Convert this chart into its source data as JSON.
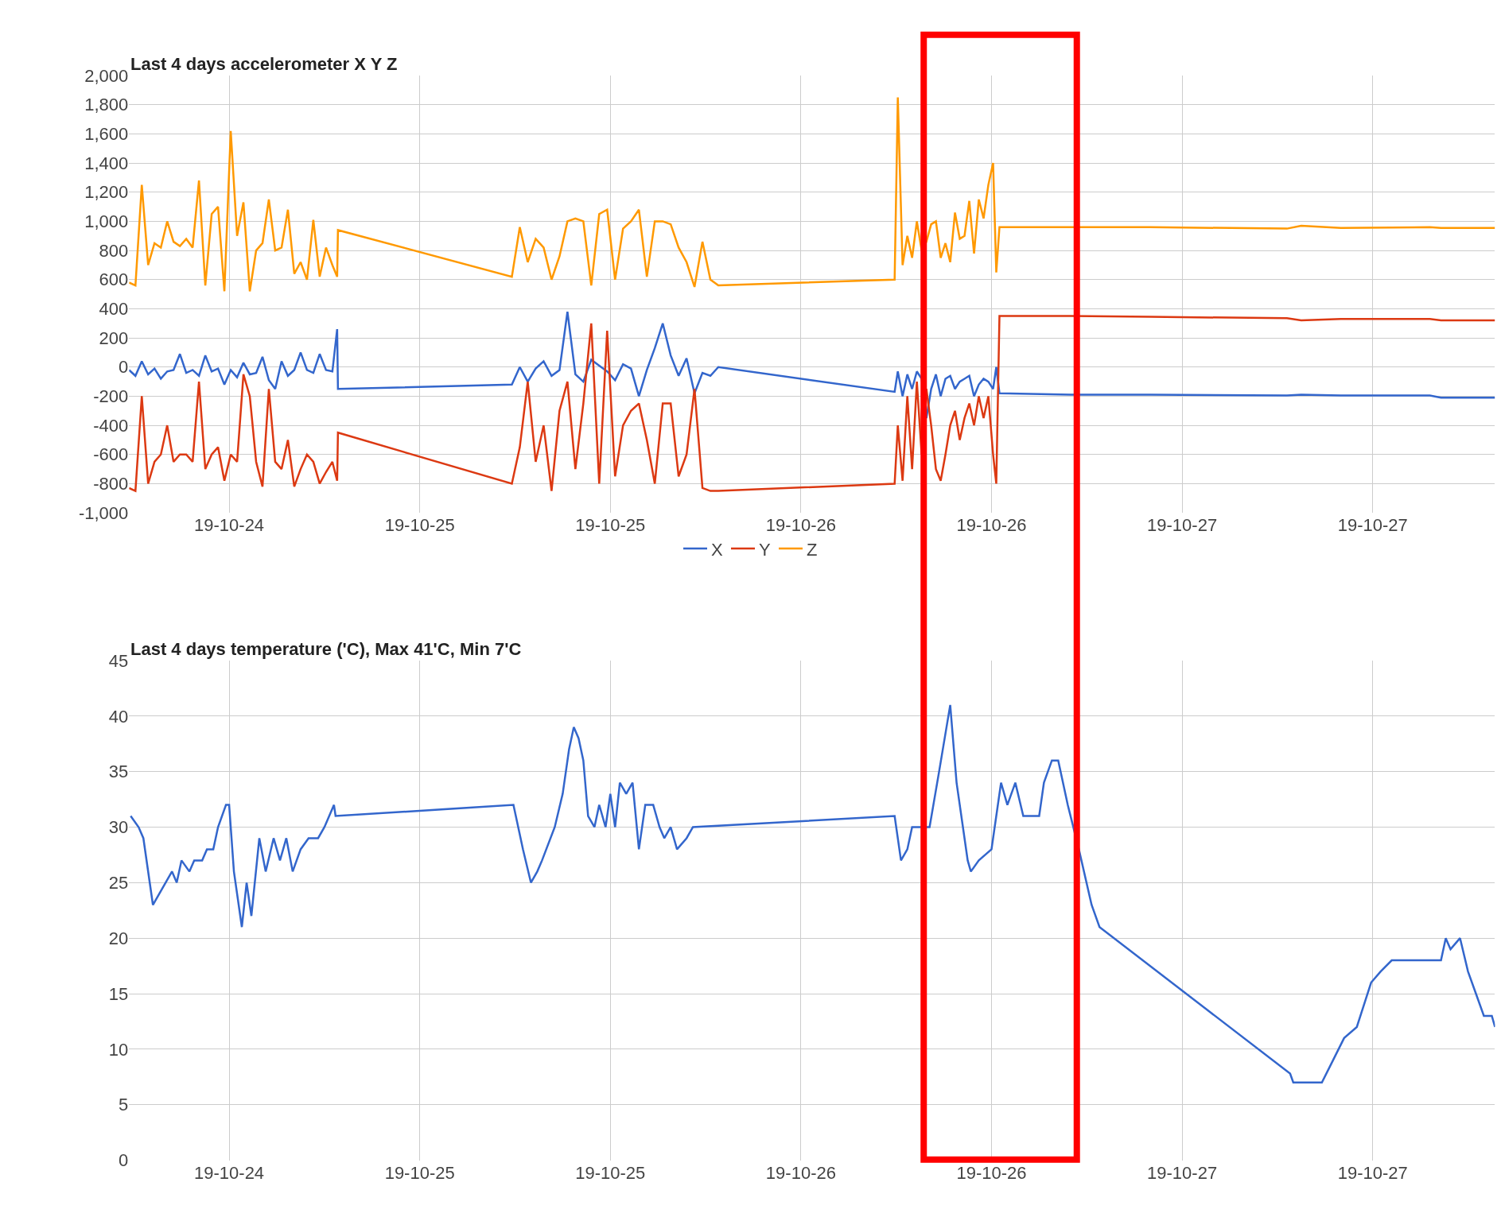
{
  "chart_data": [
    {
      "type": "line",
      "title": "Last 4 days accelerometer X Y Z",
      "legend": "bottom",
      "grid": true,
      "xlim": [
        "--10-24T05:42",
        "--10-27T19:42"
      ],
      "xticks": [
        {
          "value": "--10-24T12:00",
          "label": "19-10-24"
        },
        {
          "value": "--10-25T00:00",
          "label": "19-10-25"
        },
        {
          "value": "--10-25T12:00",
          "label": "19-10-25"
        },
        {
          "value": "--10-26T00:00",
          "label": "19-10-26"
        },
        {
          "value": "--10-26T12:00",
          "label": "19-10-26"
        },
        {
          "value": "--10-27T00:00",
          "label": "19-10-27"
        },
        {
          "value": "--10-27T12:00",
          "label": "19-10-27"
        }
      ],
      "ylim": [
        -1000,
        2000
      ],
      "yticks": [
        {
          "value": -1000,
          "label": "-1,000"
        },
        -800,
        -600,
        -400,
        -200,
        0,
        200,
        400,
        600,
        800,
        {
          "value": 1000,
          "label": "1,000"
        },
        {
          "value": 1200,
          "label": "1,200"
        },
        {
          "value": 1400,
          "label": "1,400"
        },
        {
          "value": 1600,
          "label": "1,600"
        },
        {
          "value": 1800,
          "label": "1,800"
        },
        {
          "value": 2000,
          "label": "2,000"
        }
      ],
      "x": [
        "--10-24T05:42",
        "--10-24T06:06",
        "--10-24T06:30",
        "--10-24T06:54",
        "--10-24T07:18",
        "--10-24T07:42",
        "--10-24T08:06",
        "--10-24T08:30",
        "--10-24T08:54",
        "--10-24T09:18",
        "--10-24T09:42",
        "--10-24T10:06",
        "--10-24T10:30",
        "--10-24T10:54",
        "--10-24T11:18",
        "--10-24T11:42",
        "--10-24T12:06",
        "--10-24T12:30",
        "--10-24T12:54",
        "--10-24T13:18",
        "--10-24T13:42",
        "--10-24T14:06",
        "--10-24T14:30",
        "--10-24T14:54",
        "--10-24T15:18",
        "--10-24T15:42",
        "--10-24T16:06",
        "--10-24T16:30",
        "--10-24T16:54",
        "--10-24T17:18",
        "--10-24T17:42",
        "--10-24T18:06",
        "--10-24T18:30",
        "--10-24T18:48",
        "--10-24T18:51",
        "--10-25T05:48",
        "--10-25T06:18",
        "--10-25T06:48",
        "--10-25T07:18",
        "--10-25T07:48",
        "--10-25T08:18",
        "--10-25T08:48",
        "--10-25T09:18",
        "--10-25T09:48",
        "--10-25T10:18",
        "--10-25T10:48",
        "--10-25T11:18",
        "--10-25T11:48",
        "--10-25T12:18",
        "--10-25T12:48",
        "--10-25T13:18",
        "--10-25T13:48",
        "--10-25T14:18",
        "--10-25T14:48",
        "--10-25T15:18",
        "--10-25T15:48",
        "--10-25T16:18",
        "--10-25T16:48",
        "--10-25T17:18",
        "--10-25T17:48",
        "--10-25T18:18",
        "--10-25T18:48",
        "--10-26T05:54",
        "--10-26T06:06",
        "--10-26T06:24",
        "--10-26T06:42",
        "--10-26T07:00",
        "--10-26T07:18",
        "--10-26T07:36",
        "--10-26T07:54",
        "--10-26T08:12",
        "--10-26T08:30",
        "--10-26T08:48",
        "--10-26T09:06",
        "--10-26T09:24",
        "--10-26T09:42",
        "--10-26T10:00",
        "--10-26T10:18",
        "--10-26T10:36",
        "--10-26T10:54",
        "--10-26T11:12",
        "--10-26T11:30",
        "--10-26T11:48",
        "--10-26T12:06",
        "--10-26T12:18",
        "--10-26T12:30",
        "--10-26T17:00",
        "--10-26T22:00",
        "--10-27T06:36",
        "--10-27T07:30",
        "--10-27T10:00",
        "--10-27T15:36",
        "--10-27T16:18",
        "--10-27T19:42"
      ],
      "series": [
        {
          "name": "X",
          "color": "#3366cc",
          "values": [
            -20,
            -60,
            40,
            -50,
            -10,
            -80,
            -30,
            -20,
            90,
            -40,
            -20,
            -60,
            80,
            -30,
            -10,
            -120,
            -20,
            -70,
            30,
            -50,
            -40,
            70,
            -90,
            -150,
            40,
            -60,
            -20,
            100,
            -20,
            -40,
            90,
            -20,
            -30,
            260,
            -150,
            -120,
            0,
            -100,
            -10,
            40,
            -60,
            -20,
            380,
            -50,
            -100,
            50,
            10,
            -30,
            -90,
            20,
            -10,
            -200,
            -20,
            130,
            300,
            80,
            -60,
            60,
            -180,
            -40,
            -60,
            0,
            -170,
            -30,
            -200,
            -50,
            -150,
            -30,
            -80,
            -350,
            -150,
            -50,
            -200,
            -80,
            -60,
            -150,
            -100,
            -80,
            -60,
            -200,
            -120,
            -80,
            -100,
            -150,
            0,
            -180,
            -190,
            -190,
            -195,
            -190,
            -195,
            -195,
            -210,
            -210
          ]
        },
        {
          "name": "Y",
          "color": "#dc3912",
          "values": [
            -830,
            -850,
            -200,
            -800,
            -650,
            -600,
            -400,
            -650,
            -600,
            -600,
            -650,
            -100,
            -700,
            -600,
            -550,
            -780,
            -600,
            -650,
            -50,
            -200,
            -650,
            -820,
            -150,
            -650,
            -700,
            -500,
            -820,
            -700,
            -600,
            -650,
            -800,
            -720,
            -650,
            -780,
            -450,
            -800,
            -550,
            -100,
            -650,
            -400,
            -850,
            -300,
            -100,
            -700,
            -250,
            300,
            -800,
            250,
            -750,
            -400,
            -300,
            -250,
            -500,
            -800,
            -250,
            -250,
            -750,
            -600,
            -150,
            -830,
            -850,
            -850,
            -800,
            -400,
            -780,
            -200,
            -700,
            -100,
            -600,
            -150,
            -400,
            -700,
            -780,
            -600,
            -400,
            -300,
            -500,
            -350,
            -250,
            -400,
            -200,
            -350,
            -200,
            -600,
            -800,
            350,
            350,
            345,
            335,
            320,
            330,
            330,
            320,
            320
          ]
        },
        {
          "name": "Z",
          "color": "#ff9900",
          "values": [
            580,
            560,
            1250,
            700,
            850,
            820,
            1000,
            860,
            830,
            880,
            820,
            1280,
            560,
            1050,
            1100,
            520,
            1620,
            900,
            1130,
            520,
            800,
            850,
            1150,
            800,
            820,
            1080,
            640,
            720,
            600,
            1010,
            620,
            820,
            700,
            620,
            940,
            620,
            960,
            720,
            880,
            820,
            600,
            760,
            1000,
            1020,
            1000,
            560,
            1050,
            1080,
            600,
            950,
            1000,
            1080,
            620,
            1000,
            1000,
            980,
            820,
            720,
            550,
            860,
            600,
            560,
            600,
            1850,
            700,
            900,
            750,
            1000,
            800,
            860,
            980,
            1000,
            750,
            850,
            720,
            1060,
            880,
            900,
            1140,
            780,
            1150,
            1020,
            1250,
            1400,
            650,
            960,
            960,
            960,
            950,
            970,
            955,
            960,
            955,
            955
          ]
        }
      ]
    },
    {
      "type": "line",
      "title": "Last 4 days temperature ('C), Max 41'C, Min 7'C",
      "grid": true,
      "xlim": [
        "--10-24T05:42",
        "--10-27T19:42"
      ],
      "xticks": [
        {
          "value": "--10-24T12:00",
          "label": "19-10-24"
        },
        {
          "value": "--10-25T00:00",
          "label": "19-10-25"
        },
        {
          "value": "--10-25T12:00",
          "label": "19-10-25"
        },
        {
          "value": "--10-26T00:00",
          "label": "19-10-26"
        },
        {
          "value": "--10-26T12:00",
          "label": "19-10-26"
        },
        {
          "value": "--10-27T00:00",
          "label": "19-10-27"
        },
        {
          "value": "--10-27T12:00",
          "label": "19-10-27"
        }
      ],
      "ylim": [
        0,
        45
      ],
      "yticks": [
        0,
        5,
        10,
        15,
        20,
        25,
        30,
        35,
        40,
        45
      ],
      "x": [
        "--10-24T05:48",
        "--10-24T06:18",
        "--10-24T06:36",
        "--10-24T07:12",
        "--10-24T08:00",
        "--10-24T08:24",
        "--10-24T08:42",
        "--10-24T09:00",
        "--10-24T09:30",
        "--10-24T09:48",
        "--10-24T10:18",
        "--10-24T10:36",
        "--10-24T11:00",
        "--10-24T11:18",
        "--10-24T11:48",
        "--10-24T12:00",
        "--10-24T12:18",
        "--10-24T12:48",
        "--10-24T13:06",
        "--10-24T13:24",
        "--10-24T13:54",
        "--10-24T14:18",
        "--10-24T14:48",
        "--10-24T15:12",
        "--10-24T15:36",
        "--10-24T16:00",
        "--10-24T16:30",
        "--10-24T17:00",
        "--10-24T17:36",
        "--10-24T18:00",
        "--10-24T18:18",
        "--10-24T18:36",
        "--10-24T18:42",
        "--10-25T05:54",
        "--10-25T06:30",
        "--10-25T07:00",
        "--10-25T07:24",
        "--10-25T07:42",
        "--10-25T08:30",
        "--10-25T09:00",
        "--10-25T09:24",
        "--10-25T09:42",
        "--10-25T10:00",
        "--10-25T10:18",
        "--10-25T10:36",
        "--10-25T11:00",
        "--10-25T11:18",
        "--10-25T11:42",
        "--10-25T12:00",
        "--10-25T12:18",
        "--10-25T12:36",
        "--10-25T13:00",
        "--10-25T13:24",
        "--10-25T13:48",
        "--10-25T14:12",
        "--10-25T14:42",
        "--10-25T15:06",
        "--10-25T15:24",
        "--10-25T15:48",
        "--10-25T16:12",
        "--10-25T16:48",
        "--10-25T17:12",
        "--10-26T05:54",
        "--10-26T06:18",
        "--10-26T06:42",
        "--10-26T07:00",
        "--10-26T07:42",
        "--10-26T08:06",
        "--10-26T08:42",
        "--10-26T09:24",
        "--10-26T09:48",
        "--10-26T10:30",
        "--10-26T10:42",
        "--10-26T11:12",
        "--10-26T12:00",
        "--10-26T12:36",
        "--10-26T13:00",
        "--10-26T13:30",
        "--10-26T14:00",
        "--10-26T15:00",
        "--10-26T15:18",
        "--10-26T15:48",
        "--10-26T16:12",
        "--10-26T16:48",
        "--10-26T17:30",
        "--10-26T18:18",
        "--10-26T18:48",
        "--10-27T06:48",
        "--10-27T07:00",
        "--10-27T08:48",
        "--10-27T09:30",
        "--10-27T10:12",
        "--10-27T11:00",
        "--10-27T11:54",
        "--10-27T12:30",
        "--10-27T13:12",
        "--10-27T16:18",
        "--10-27T16:36",
        "--10-27T16:54",
        "--10-27T17:30",
        "--10-27T18:00",
        "--10-27T18:30",
        "--10-27T19:00",
        "--10-27T19:30",
        "--10-27T19:42"
      ],
      "series": [
        {
          "color": "#3366cc",
          "values": [
            31,
            30,
            29,
            23,
            25,
            26,
            25,
            27,
            26,
            27,
            27,
            28,
            28,
            30,
            32,
            32,
            26,
            21,
            25,
            22,
            29,
            26,
            29,
            27,
            29,
            26,
            28,
            29,
            29,
            30,
            31,
            32,
            31,
            32,
            28,
            25,
            26,
            27,
            30,
            33,
            37,
            39,
            38,
            36,
            31,
            30,
            32,
            30,
            33,
            30,
            34,
            33,
            34,
            28,
            32,
            32,
            30,
            29,
            30,
            28,
            29,
            30,
            31,
            27,
            28,
            30,
            30,
            30,
            35,
            41,
            34,
            27,
            26,
            27,
            28,
            34,
            32,
            34,
            31,
            31,
            34,
            36,
            36,
            32,
            28,
            23,
            21,
            7.8,
            7,
            7,
            9,
            11,
            12,
            16,
            17,
            18,
            18,
            20,
            19,
            20,
            17,
            15,
            13,
            13,
            12
          ]
        }
      ]
    }
  ]
}
